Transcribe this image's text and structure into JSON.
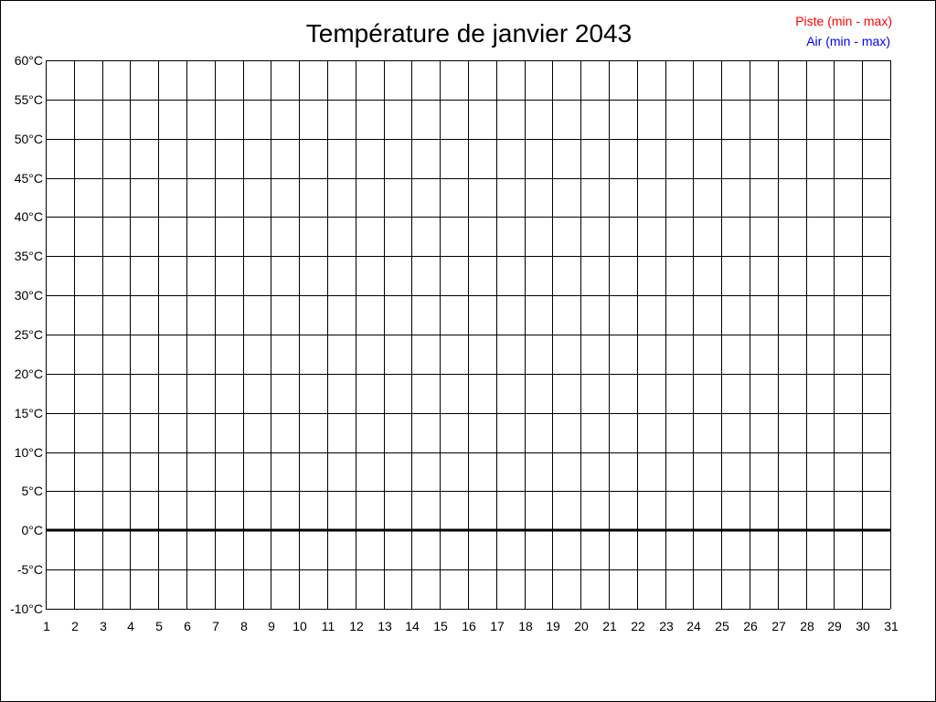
{
  "chart_data": {
    "type": "line",
    "title": "Température de janvier 2043",
    "xlabel": "",
    "ylabel": "",
    "x_ticks": [
      1,
      2,
      3,
      4,
      5,
      6,
      7,
      8,
      9,
      10,
      11,
      12,
      13,
      14,
      15,
      16,
      17,
      18,
      19,
      20,
      21,
      22,
      23,
      24,
      25,
      26,
      27,
      28,
      29,
      30,
      31
    ],
    "xlim": [
      1,
      31
    ],
    "ylim": [
      -10,
      60
    ],
    "y_ticks": [
      -10,
      -5,
      0,
      5,
      10,
      15,
      20,
      25,
      30,
      35,
      40,
      45,
      50,
      55,
      60
    ],
    "y_unit": "°C",
    "grid": true,
    "zero_line_emphasized": true,
    "legend_position": "top-right",
    "series": [
      {
        "name": "Piste (min - max)",
        "color": "#ff0000",
        "values": []
      },
      {
        "name": "Air (min - max)",
        "color": "#0000ff",
        "values": []
      }
    ]
  }
}
